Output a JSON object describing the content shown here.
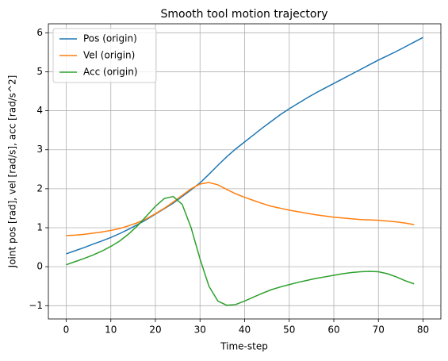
{
  "chart_data": {
    "type": "line",
    "title": "Smooth tool motion trajectory",
    "xlabel": "Time-step",
    "ylabel": "Joint pos [rad], vel [rad/s], acc [rad/s^2]",
    "x": [
      0,
      2,
      4,
      6,
      8,
      10,
      12,
      14,
      16,
      18,
      20,
      22,
      24,
      26,
      28,
      30,
      32,
      34,
      36,
      38,
      40,
      42,
      44,
      46,
      48,
      50,
      52,
      54,
      56,
      58,
      60,
      62,
      64,
      66,
      68,
      70,
      72,
      74,
      76,
      78,
      80
    ],
    "series": [
      {
        "name": "Pos (origin)",
        "color": "#1f77b4",
        "values": [
          0.33,
          0.41,
          0.49,
          0.58,
          0.66,
          0.75,
          0.85,
          0.96,
          1.08,
          1.21,
          1.35,
          1.49,
          1.63,
          1.8,
          1.97,
          2.15,
          2.37,
          2.6,
          2.82,
          3.02,
          3.2,
          3.38,
          3.56,
          3.73,
          3.9,
          4.05,
          4.19,
          4.33,
          4.46,
          4.58,
          4.7,
          4.82,
          4.94,
          5.06,
          5.18,
          5.3,
          5.41,
          5.52,
          5.64,
          5.76,
          5.88
        ]
      },
      {
        "name": "Vel (origin)",
        "color": "#ff7f0e",
        "values": [
          0.8,
          0.81,
          0.83,
          0.86,
          0.89,
          0.93,
          0.98,
          1.05,
          1.13,
          1.23,
          1.36,
          1.5,
          1.66,
          1.83,
          2.0,
          2.12,
          2.16,
          2.1,
          1.98,
          1.87,
          1.78,
          1.7,
          1.62,
          1.55,
          1.5,
          1.45,
          1.41,
          1.37,
          1.33,
          1.3,
          1.27,
          1.25,
          1.23,
          1.21,
          1.2,
          1.19,
          1.17,
          1.15,
          1.12,
          1.08,
          null
        ]
      },
      {
        "name": "Acc (origin)",
        "color": "#2ca02c",
        "values": [
          0.05,
          0.13,
          0.21,
          0.3,
          0.4,
          0.52,
          0.66,
          0.84,
          1.05,
          1.3,
          1.55,
          1.75,
          1.8,
          1.6,
          1.0,
          0.2,
          -0.5,
          -0.88,
          -0.99,
          -0.97,
          -0.88,
          -0.78,
          -0.68,
          -0.59,
          -0.52,
          -0.46,
          -0.4,
          -0.35,
          -0.3,
          -0.26,
          -0.22,
          -0.18,
          -0.15,
          -0.13,
          -0.12,
          -0.13,
          -0.18,
          -0.26,
          -0.36,
          -0.44,
          null
        ]
      }
    ],
    "xlim": [
      -4,
      84
    ],
    "ylim": [
      -1.34,
      6.23
    ],
    "xticks": [
      0,
      10,
      20,
      30,
      40,
      50,
      60,
      70,
      80
    ],
    "yticks": [
      {
        "value": -1,
        "label": "−1"
      },
      0,
      1,
      2,
      3,
      4,
      5,
      6
    ],
    "grid": true,
    "legend": "upper-left"
  }
}
